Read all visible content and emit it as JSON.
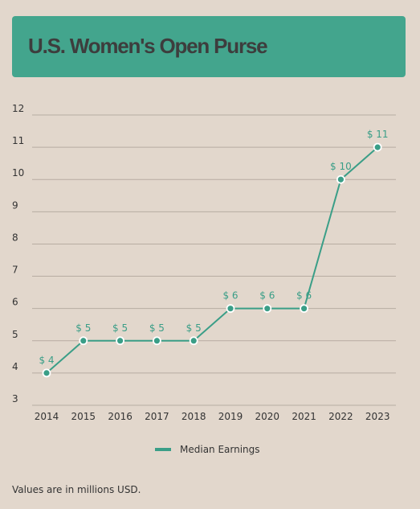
{
  "title": "U.S. Women's Open Purse",
  "footnote": "Values are in millions USD.",
  "colors": {
    "background": "#e2d7cc",
    "banner": "#43a58d",
    "series": "#3a9e87",
    "gridline": "#b7aca2",
    "axis_text": "#333333"
  },
  "chart_data": {
    "type": "line",
    "title": "U.S. Women's Open Purse",
    "x": [
      "2014",
      "2015",
      "2016",
      "2017",
      "2018",
      "2019",
      "2020",
      "2021",
      "2022",
      "2023"
    ],
    "series": [
      {
        "name": "Median Earnings",
        "values": [
          4,
          5,
          5,
          5,
          5,
          6,
          6,
          6,
          10,
          11
        ],
        "labels": [
          "$ 4",
          "$ 5",
          "$ 5",
          "$ 5",
          "$ 5",
          "$ 6",
          "$ 6",
          "$ 6",
          "$ 10",
          "$ 11"
        ]
      }
    ],
    "y_ticks": [
      "3",
      "4",
      "5",
      "6",
      "7",
      "8",
      "9",
      "10",
      "11",
      "12"
    ],
    "ylim": [
      3,
      12
    ],
    "grid": true,
    "legend": "bottom-center"
  }
}
